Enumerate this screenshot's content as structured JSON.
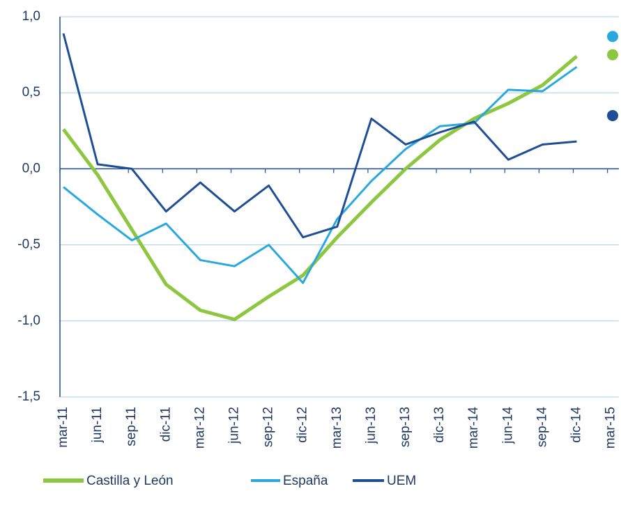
{
  "chart_data": {
    "type": "line",
    "categories": [
      "mar-11",
      "jun-11",
      "sep-11",
      "dic-11",
      "mar-12",
      "jun-12",
      "sep-12",
      "dic-12",
      "mar-13",
      "jun-13",
      "sep-13",
      "dic-13",
      "mar-14",
      "jun-14",
      "sep-14",
      "dic-14",
      "mar-15"
    ],
    "series": [
      {
        "name": "Castilla y León",
        "color": "#8dc63f",
        "width": 5,
        "values": [
          0.26,
          -0.04,
          -0.4,
          -0.76,
          -0.93,
          -0.99,
          -0.84,
          -0.7,
          -0.45,
          -0.22,
          0.0,
          0.19,
          0.33,
          0.43,
          0.55,
          0.74,
          null
        ],
        "marker_value": 0.75
      },
      {
        "name": "España",
        "color": "#29a8e0",
        "width": 3,
        "values": [
          -0.12,
          -0.3,
          -0.47,
          -0.36,
          -0.6,
          -0.64,
          -0.5,
          -0.75,
          -0.33,
          -0.08,
          0.13,
          0.28,
          0.3,
          0.52,
          0.51,
          0.67,
          null
        ],
        "marker_value": 0.87
      },
      {
        "name": "UEM",
        "color": "#1f4e96",
        "width": 3,
        "values": [
          0.89,
          0.03,
          0.0,
          -0.28,
          -0.09,
          -0.28,
          -0.11,
          -0.45,
          -0.38,
          0.33,
          0.16,
          0.24,
          0.31,
          0.06,
          0.16,
          0.18,
          null
        ],
        "marker_value": 0.35
      }
    ],
    "ylim": [
      -1.5,
      1.0
    ],
    "yticks": [
      {
        "value": -1.5,
        "label": "-1,5"
      },
      {
        "value": -1,
        "label": "-1,0"
      },
      {
        "value": -0.5,
        "label": "-0,5"
      },
      {
        "value": 0,
        "label": "0,0"
      },
      {
        "value": 0.5,
        "label": "0,5"
      },
      {
        "value": 1,
        "label": "1,0"
      }
    ],
    "grid": true
  }
}
